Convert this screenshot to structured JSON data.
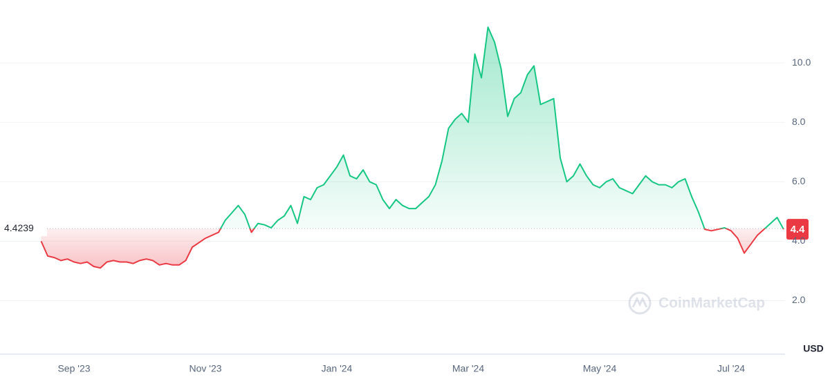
{
  "chart_data": {
    "type": "line",
    "categories": [
      null,
      null,
      null,
      null,
      null,
      "Sep '23",
      null,
      null,
      null,
      null,
      null,
      null,
      null,
      null,
      null,
      null,
      null,
      null,
      null,
      null,
      null,
      null,
      null,
      null,
      null,
      "Nov '23",
      null,
      null,
      null,
      null,
      null,
      null,
      null,
      null,
      null,
      null,
      null,
      null,
      null,
      null,
      null,
      null,
      null,
      null,
      null,
      "Jan '24",
      null,
      null,
      null,
      null,
      null,
      null,
      null,
      null,
      null,
      null,
      null,
      null,
      null,
      null,
      null,
      null,
      null,
      null,
      null,
      "Mar '24",
      null,
      null,
      null,
      null,
      null,
      null,
      null,
      null,
      null,
      null,
      null,
      null,
      null,
      null,
      null,
      null,
      null,
      null,
      null,
      "May '24",
      null,
      null,
      null,
      null,
      null,
      null,
      null,
      null,
      null,
      null,
      null,
      null,
      null,
      null,
      null,
      null,
      null,
      null,
      null,
      "Jul '24",
      null,
      null,
      null,
      null,
      null,
      null,
      null,
      null
    ],
    "series": [
      {
        "up_color": "#16c784",
        "down_color": "#ea3943",
        "values": [
          4.0,
          3.5,
          3.45,
          3.35,
          3.4,
          3.3,
          3.25,
          3.3,
          3.15,
          3.1,
          3.3,
          3.35,
          3.3,
          3.3,
          3.25,
          3.35,
          3.4,
          3.35,
          3.2,
          3.25,
          3.2,
          3.2,
          3.35,
          3.8,
          3.95,
          4.1,
          4.2,
          4.3,
          4.7,
          4.95,
          5.2,
          4.9,
          4.3,
          4.6,
          4.55,
          4.45,
          4.7,
          4.85,
          5.2,
          4.6,
          5.5,
          5.4,
          5.8,
          5.9,
          6.2,
          6.5,
          6.9,
          6.2,
          6.1,
          6.4,
          6.0,
          5.9,
          5.4,
          5.1,
          5.4,
          5.2,
          5.1,
          5.1,
          5.3,
          5.5,
          5.9,
          6.7,
          7.8,
          8.1,
          8.3,
          8.0,
          10.3,
          9.5,
          11.2,
          10.7,
          9.8,
          8.2,
          8.8,
          9.0,
          9.6,
          9.9,
          8.6,
          8.7,
          8.8,
          6.8,
          6.0,
          6.2,
          6.6,
          6.2,
          5.9,
          5.8,
          6.0,
          6.1,
          5.8,
          5.7,
          5.6,
          5.9,
          6.2,
          6.0,
          5.9,
          5.9,
          5.8,
          6.0,
          6.1,
          5.5,
          5.0,
          4.4,
          4.35,
          4.4,
          4.45,
          4.35,
          4.1,
          3.6,
          3.9,
          4.2,
          4.4,
          4.6,
          4.8,
          4.4
        ]
      }
    ],
    "baseline": 4.4239,
    "ylim": [
      0.2,
      12
    ],
    "yticks": [
      {
        "value": 2,
        "label": "2.0"
      },
      {
        "value": 4,
        "label": "4.0"
      },
      {
        "value": 6,
        "label": "6.0"
      },
      {
        "value": 8,
        "label": "8.0"
      },
      {
        "value": 10,
        "label": "10.0"
      }
    ],
    "y_unit": "USD",
    "watermark": "CoinMarketCap",
    "grid": true
  }
}
